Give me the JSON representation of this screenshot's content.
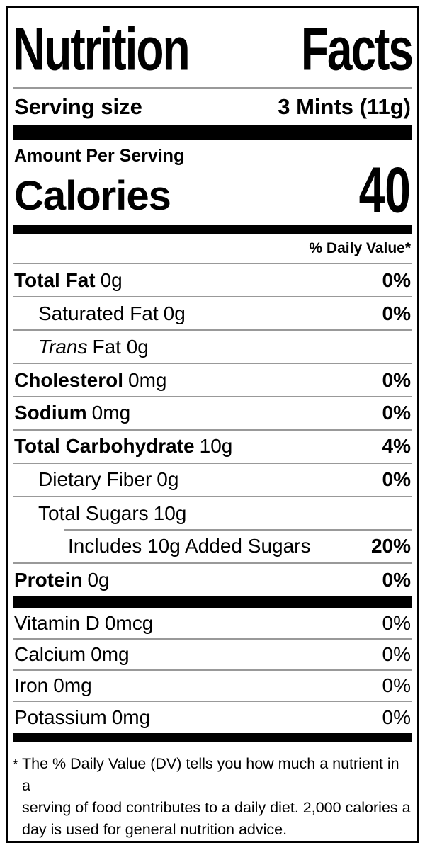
{
  "label": {
    "title_words": [
      "Nutrition",
      "Facts"
    ],
    "serving": {
      "label": "Serving size",
      "value": "3 Mints (11g)"
    },
    "amount_per_serving": "Amount Per Serving",
    "calories": {
      "label": "Calories",
      "value": "40"
    },
    "daily_value_header": "% Daily Value*",
    "rows": [
      {
        "name": "Total Fat",
        "amount": "0g",
        "dv": "0%"
      },
      {
        "name": "Saturated Fat",
        "amount": "0g",
        "dv": "0%"
      },
      {
        "name": "Trans",
        "amount": "Fat 0g",
        "dv": ""
      },
      {
        "name": "Cholesterol",
        "amount": "0mg",
        "dv": "0%"
      },
      {
        "name": "Sodium",
        "amount": "0mg",
        "dv": "0%"
      },
      {
        "name": "Total Carbohydrate",
        "amount": "10g",
        "dv": "4%"
      },
      {
        "name": "Dietary Fiber",
        "amount": "0g",
        "dv": "0%"
      },
      {
        "name": "Total Sugars",
        "amount": "10g",
        "dv": ""
      },
      {
        "name": "Includes 10g Added Sugars",
        "amount": "",
        "dv": "20%"
      },
      {
        "name": "Protein",
        "amount": "0g",
        "dv": "0%"
      }
    ],
    "micronutrients": [
      {
        "name": "Vitamin D",
        "amount": "0mcg",
        "dv": "0%"
      },
      {
        "name": "Calcium",
        "amount": "0mg",
        "dv": "0%"
      },
      {
        "name": "Iron",
        "amount": "0mg",
        "dv": "0%"
      },
      {
        "name": "Potassium",
        "amount": "0mg",
        "dv": "0%"
      }
    ],
    "footnote": {
      "asterisk": "*",
      "lines": [
        "The % Daily Value (DV) tells you how much a nutrient in a",
        "serving of food contributes to a daily diet. 2,000 calories a",
        "day is used for general nutrition advice."
      ]
    },
    "colors": {
      "text": "#000000",
      "background": "#ffffff",
      "hairline": "#999999",
      "bar": "#000000"
    }
  }
}
